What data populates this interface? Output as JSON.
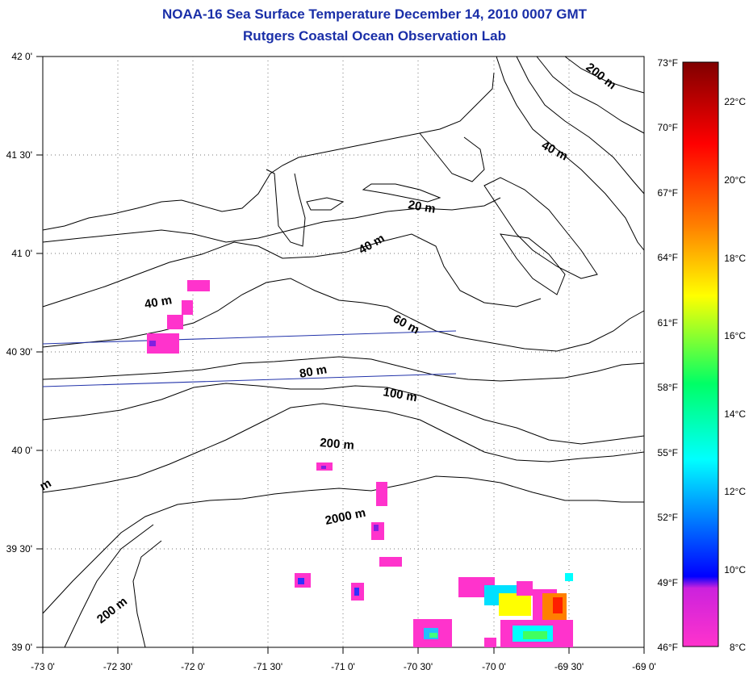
{
  "title": "NOAA-16 Sea Surface Temperature December 14, 2010 0007 GMT",
  "subtitle": "Rutgers Coastal Ocean Observation Lab",
  "map": {
    "lon_range": [
      -73.0,
      -69.0
    ],
    "lat_range": [
      39.0,
      42.0
    ],
    "grid": "dotted",
    "lon_ticks": [
      "-73 0'",
      "-72 30'",
      "-72 0'",
      "-71 30'",
      "-71 0'",
      "-70 30'",
      "-70 0'",
      "-69 30'",
      "-69 0'"
    ],
    "lat_ticks": [
      "39 0'",
      "39 30'",
      "40 0'",
      "40 30'",
      "41 0'",
      "41 30'",
      "42 0'"
    ],
    "depth_contour_labels": [
      "20 m",
      "40 m",
      "40 m",
      "40 m",
      "60 m",
      "80 m",
      "100 m",
      "200 m",
      "200 m",
      "200 m",
      "2000 m",
      "m"
    ]
  },
  "colorbar": {
    "fahrenheit_labels": [
      "73°F",
      "70°F",
      "67°F",
      "64°F",
      "61°F",
      "58°F",
      "55°F",
      "52°F",
      "49°F",
      "46°F"
    ],
    "celsius_labels": [
      "22°C",
      "20°C",
      "18°C",
      "16°C",
      "14°C",
      "12°C",
      "10°C",
      "8°C"
    ],
    "colors": [
      "#ff33cc",
      "#a020f0",
      "#0000ff",
      "#00ffff",
      "#00ff00",
      "#ffff00",
      "#ff8000",
      "#ff0000",
      "#800000"
    ]
  }
}
